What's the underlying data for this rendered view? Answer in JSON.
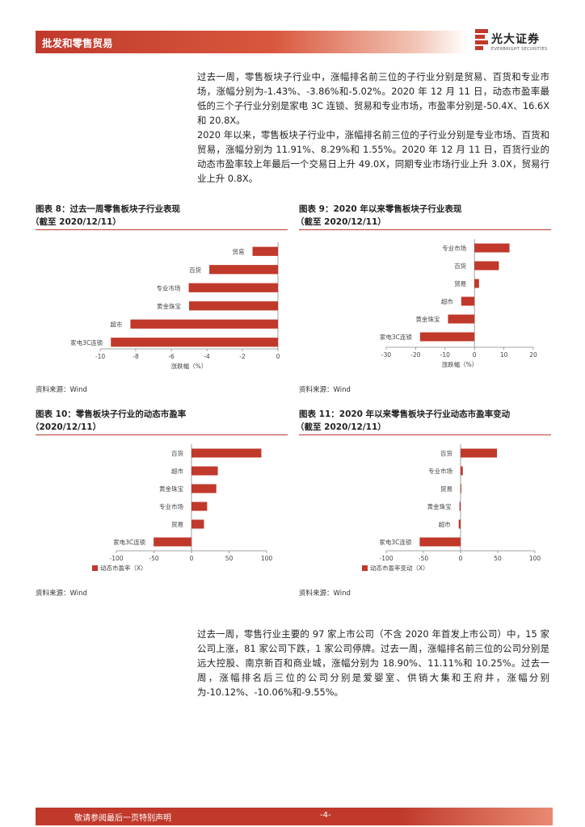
{
  "header": {
    "title": "批发和零售贸易",
    "logo_cn": "光大证券",
    "logo_en": "EVERBRIGHT SECURITIES"
  },
  "paragraphs": [
    "过去一周，零售板块子行业中，涨幅排名前三位的子行业分别是贸易、百货和专业市场，涨幅分别为-1.43%、-3.86%和-5.02%。2020 年 12 月 11 日，动态市盈率最低的三个子行业分别是家电 3C 连锁、贸易和专业市场，市盈率分别是-50.4X、16.6X和 20.8X。",
    "2020 年以来，零售板块子行业中，涨幅排名前三位的子行业分别是专业市场、百货和贸易，涨幅分别为 11.91%、8.29%和 1.55%。2020 年 12 月 11 日，百货行业的动态市盈率较上年最后一个交易日上升 49.0X，同期专业市场行业上升 3.0X，贸易行业上升 0.8X。",
    "过去一周，零售行业主要的 97 家上市公司（不含 2020 年首发上市公司）中，15 家公司上涨，81 家公司下跌，1 家公司停牌。过去一周，涨幅排名前三位的公司分别是远大控股、南京新百和商业城，涨幅分别为 18.90%、11.11%和 10.25%。过去一周，涨幅排名后三位的公司分别是爱婴室、供销大集和王府井，涨幅分别为-10.12%、-10.06%和-9.55%。"
  ],
  "figures": [
    {
      "title": "图表 8：过去一周零售板块子行业表现",
      "subtitle": "（截至 2020/12/11）",
      "source": "资料来源：Wind"
    },
    {
      "title": "图表 9：2020 年以来零售板块子行业表现",
      "subtitle": "（截至 2020/12/11）",
      "source": "资料来源：Wind"
    },
    {
      "title": "图表 10：零售板块子行业的动态市盈率",
      "subtitle": "（2020/12/11）",
      "source": "资料来源：Wind"
    },
    {
      "title": "图表 11：2020 年以来零售板块子行业动态市盈率变动",
      "subtitle": "（截至 2020/12/11）",
      "source": "资料来源：Wind"
    }
  ],
  "chart_data": [
    {
      "type": "bar",
      "orientation": "horizontal",
      "categories": [
        "贸易",
        "百货",
        "专业市场",
        "黄金珠宝",
        "超市",
        "家电3C连锁"
      ],
      "values": [
        -1.43,
        -3.86,
        -5.02,
        -5.0,
        -8.3,
        -9.4
      ],
      "xlabel": "涨跌幅（%）",
      "xlim": [
        -10,
        0
      ],
      "xticks": [
        -10,
        -8,
        -6,
        -4,
        -2,
        0
      ],
      "legend": "",
      "color": "#c0392b",
      "grid": false
    },
    {
      "type": "bar",
      "orientation": "horizontal",
      "categories": [
        "专业市场",
        "百货",
        "贸易",
        "超市",
        "黄金珠宝",
        "家电3C连锁"
      ],
      "values": [
        11.91,
        8.29,
        1.55,
        -4.5,
        -9.0,
        -18.5
      ],
      "xlabel": "涨跌幅（%）",
      "xlim": [
        -30,
        20
      ],
      "xticks": [
        -30,
        -20,
        -10,
        0,
        10,
        20
      ],
      "legend": "",
      "color": "#c0392b",
      "grid": false
    },
    {
      "type": "bar",
      "orientation": "horizontal",
      "categories": [
        "百货",
        "超市",
        "黄金珠宝",
        "专业市场",
        "贸易",
        "家电3C连锁"
      ],
      "values": [
        93,
        35,
        33,
        20.8,
        16.6,
        -50.4
      ],
      "xlabel": "",
      "xlim": [
        -100,
        100
      ],
      "xticks": [
        -100,
        -50,
        0,
        50,
        100
      ],
      "legend": "动态市盈率（X）",
      "legend_position": "bottom-left",
      "color": "#c0392b",
      "grid": false
    },
    {
      "type": "bar",
      "orientation": "horizontal",
      "categories": [
        "百货",
        "专业市场",
        "贸易",
        "黄金珠宝",
        "超市",
        "家电3C连锁"
      ],
      "values": [
        49.0,
        3.0,
        0.8,
        -1.5,
        -2.5,
        -55.0
      ],
      "xlabel": "",
      "xlim": [
        -100,
        100
      ],
      "xticks": [
        -100,
        -50,
        0,
        50,
        100
      ],
      "legend": "动态市盈率变动（X）",
      "legend_position": "bottom-left",
      "color": "#c0392b",
      "grid": false
    }
  ],
  "footer": {
    "disclaimer": "敬请参阅最后一页特别声明",
    "page": "-4-"
  }
}
